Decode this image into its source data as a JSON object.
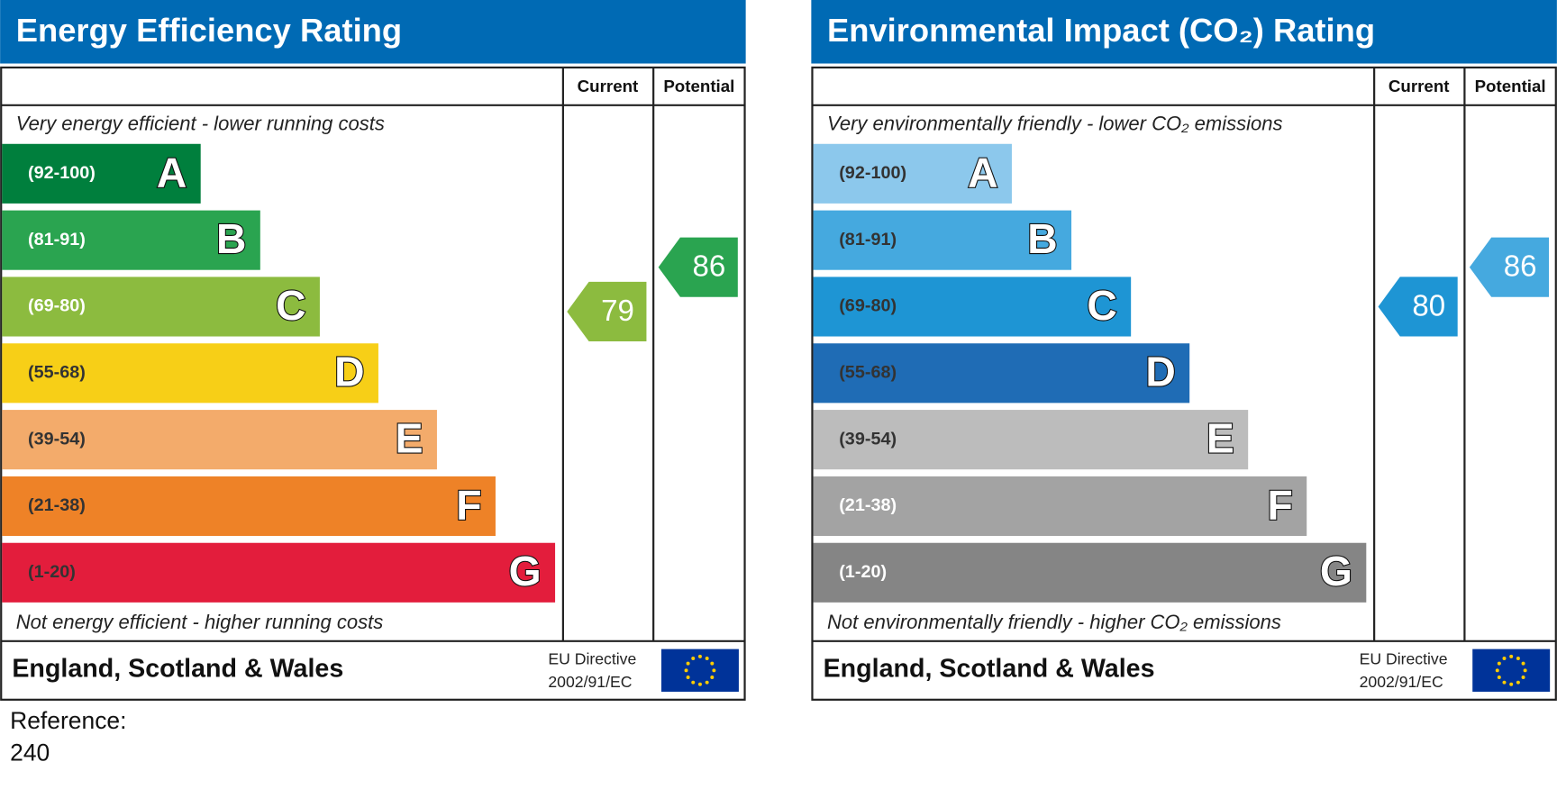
{
  "panels": [
    {
      "title": "Energy Efficiency Rating",
      "col_current": "Current",
      "col_potential": "Potential",
      "top_note": "Very energy efficient - lower running costs",
      "bottom_note": "Not energy efficient - higher running costs",
      "bands": [
        {
          "range": "(92-100)",
          "letter": "A",
          "color": "#007f3d",
          "text_color": "#ffffff"
        },
        {
          "range": "(81-91)",
          "letter": "B",
          "color": "#2aa450",
          "text_color": "#ffffff"
        },
        {
          "range": "(69-80)",
          "letter": "C",
          "color": "#8cbb3f",
          "text_color": "#ffffff"
        },
        {
          "range": "(55-68)",
          "letter": "D",
          "color": "#f7cf17",
          "text_color": "#333333"
        },
        {
          "range": "(39-54)",
          "letter": "E",
          "color": "#f3ab6b",
          "text_color": "#333333"
        },
        {
          "range": "(21-38)",
          "letter": "F",
          "color": "#ee8227",
          "text_color": "#333333"
        },
        {
          "range": "(1-20)",
          "letter": "G",
          "color": "#e31d3c",
          "text_color": "#333333"
        }
      ],
      "current": 79,
      "potential": 86,
      "footer": "England, Scotland & Wales",
      "directive": [
        "EU Directive",
        "2002/91/EC"
      ]
    },
    {
      "title": "Environmental Impact (CO₂) Rating",
      "col_current": "Current",
      "col_potential": "Potential",
      "top_note": "Very environmentally friendly - lower CO₂ emissions",
      "bottom_note": "Not environmentally friendly - higher CO₂ emissions",
      "bands": [
        {
          "range": "(92-100)",
          "letter": "A",
          "color": "#8cc8ec",
          "text_color": "#333333"
        },
        {
          "range": "(81-91)",
          "letter": "B",
          "color": "#45a9df",
          "text_color": "#333333"
        },
        {
          "range": "(69-80)",
          "letter": "C",
          "color": "#1e95d4",
          "text_color": "#333333"
        },
        {
          "range": "(55-68)",
          "letter": "D",
          "color": "#1f6cb5",
          "text_color": "#333333"
        },
        {
          "range": "(39-54)",
          "letter": "E",
          "color": "#bcbcbc",
          "text_color": "#333333"
        },
        {
          "range": "(21-38)",
          "letter": "F",
          "color": "#a3a3a3",
          "text_color": "#ffffff"
        },
        {
          "range": "(1-20)",
          "letter": "G",
          "color": "#858585",
          "text_color": "#ffffff"
        }
      ],
      "current": 80,
      "potential": 86,
      "footer": "England, Scotland & Wales",
      "directive": [
        "EU Directive",
        "2002/91/EC"
      ]
    }
  ],
  "reference": [
    "Reference:",
    "240"
  ]
}
